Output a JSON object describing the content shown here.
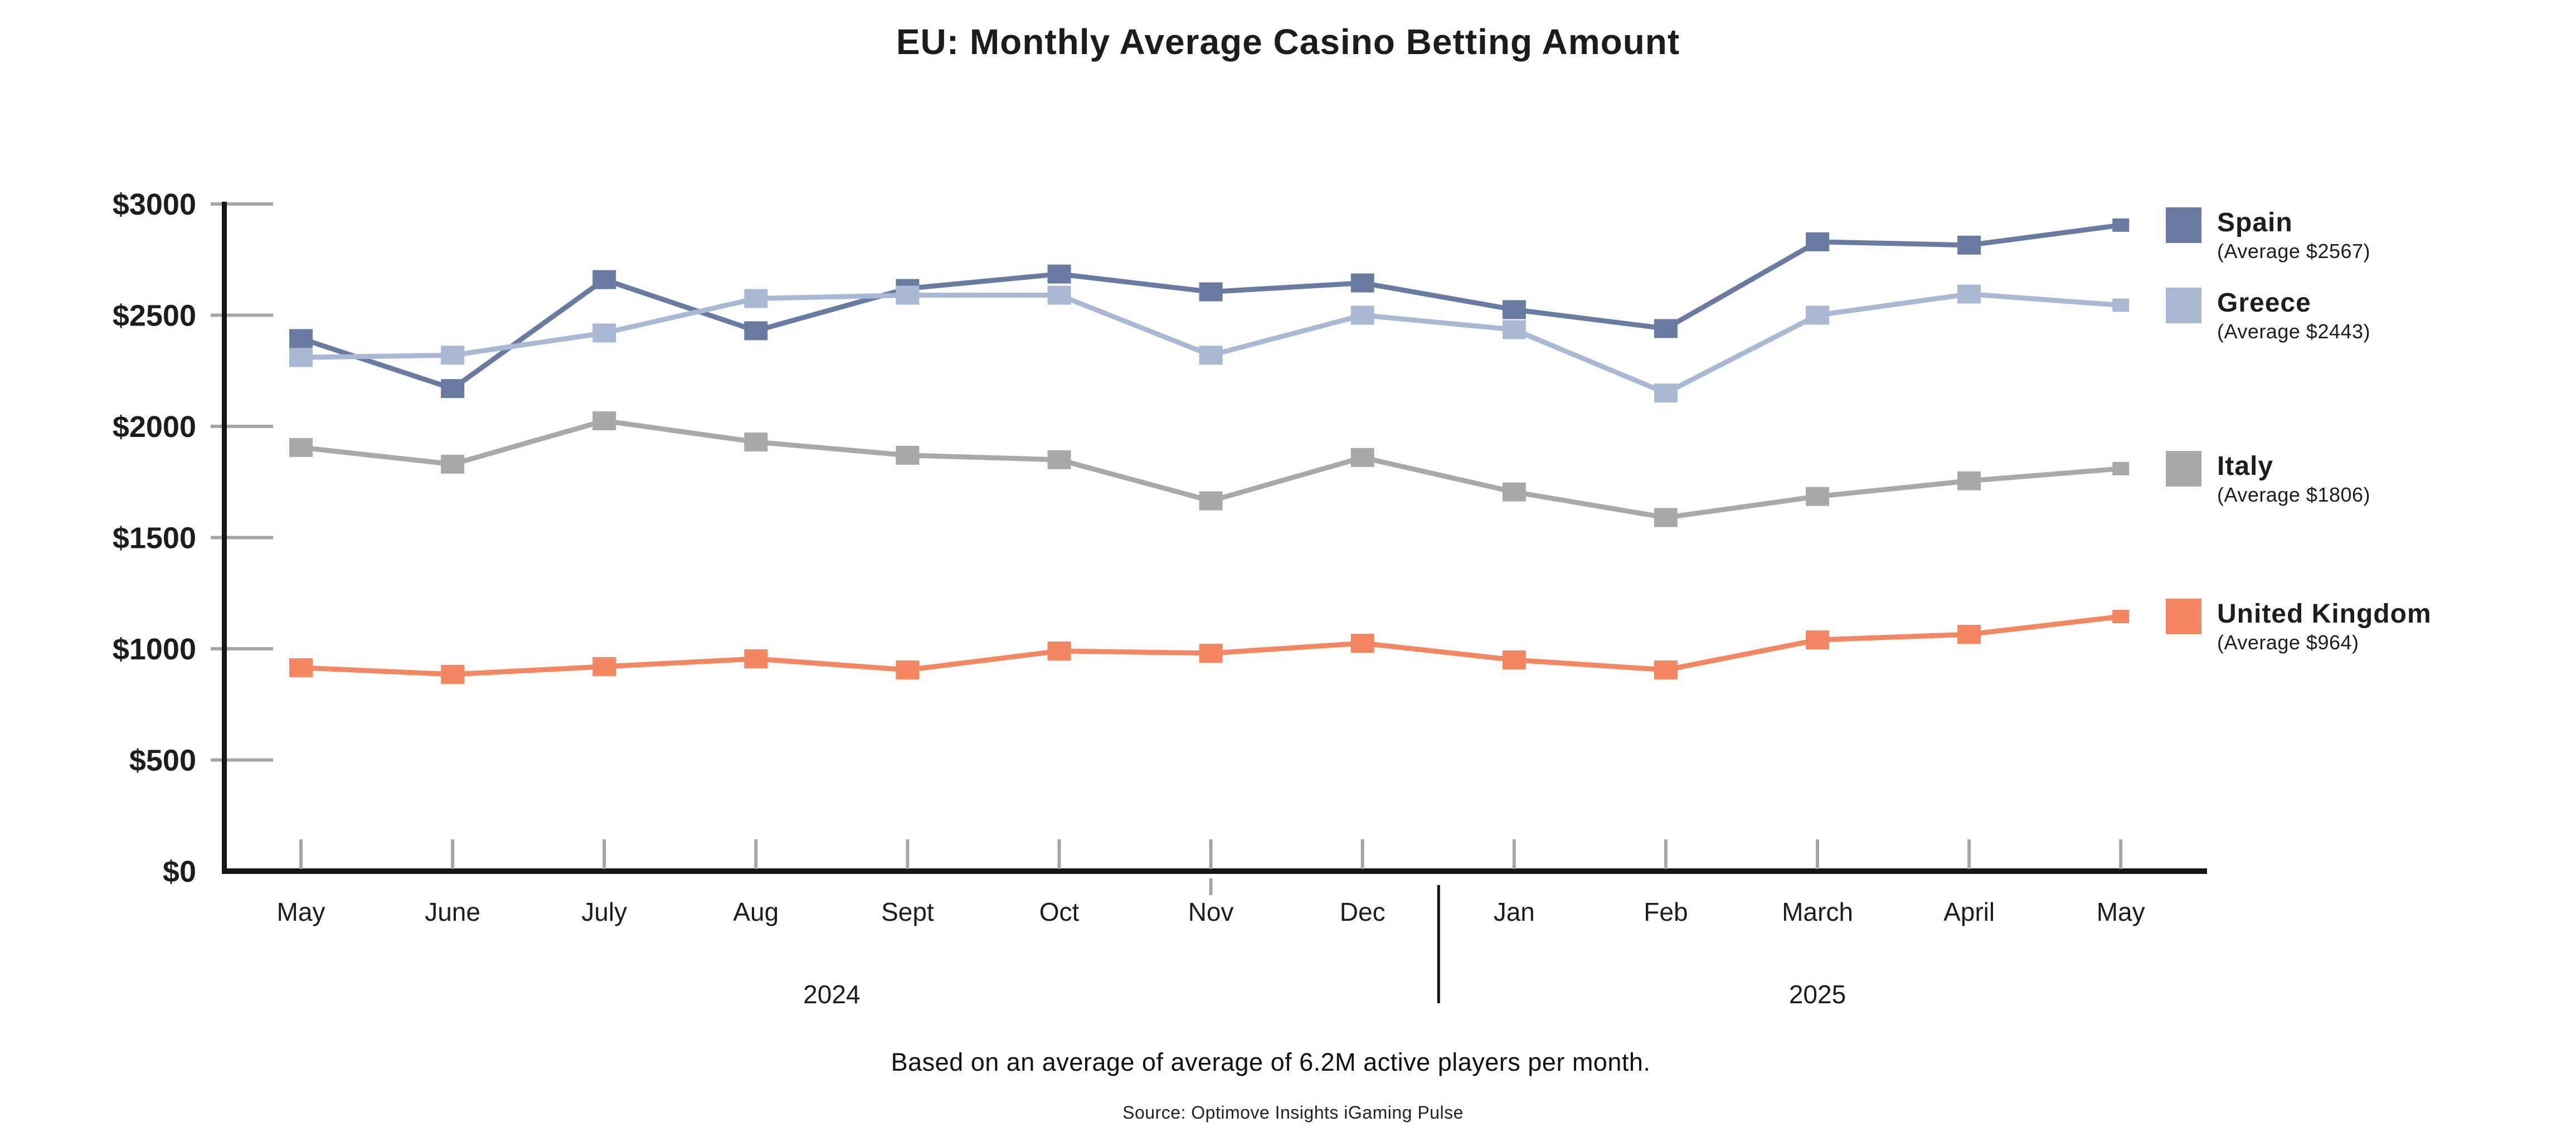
{
  "title": "EU: Monthly Average Casino Betting Amount",
  "footer": {
    "note": "Based on an average of average of 6.2M active players per month.",
    "source": "Source: Optimove Insights iGaming Pulse"
  },
  "legend": [
    {
      "label": "Spain",
      "average_label": "(Average $2567)",
      "color": "#6a7ba2"
    },
    {
      "label": "Greece",
      "average_label": "(Average $2443)",
      "color": "#aab9d3"
    },
    {
      "label": "Italy",
      "average_label": "(Average $1806)",
      "color": "#a9a9ab"
    },
    {
      "label": "United Kingdom",
      "average_label": "(Average $964)",
      "color": "#f48661"
    }
  ],
  "chart_data": {
    "type": "line",
    "x": [
      "May",
      "June",
      "July",
      "Aug",
      "Sept",
      "Oct",
      "Nov",
      "Dec",
      "Jan",
      "Feb",
      "March",
      "April",
      "May"
    ],
    "year_groups": [
      {
        "label": "2024",
        "start": 0,
        "end": 7
      },
      {
        "label": "2025",
        "start": 8,
        "end": 12
      }
    ],
    "y_ticks": [
      "$3000",
      "$2500",
      "$2000",
      "$1500",
      "$1000",
      "$500",
      "$0"
    ],
    "ylim": [
      0,
      3000
    ],
    "grid": false,
    "legend_position": "right",
    "series": [
      {
        "name": "Spain",
        "color": "#6a7ba2",
        "average": 2567,
        "values": [
          2395,
          2170,
          2660,
          2430,
          2620,
          2685,
          2605,
          2645,
          2525,
          2440,
          2830,
          2815,
          2905
        ]
      },
      {
        "name": "Greece",
        "color": "#aab9d3",
        "average": 2443,
        "values": [
          2310,
          2320,
          2420,
          2575,
          2590,
          2590,
          2320,
          2500,
          2435,
          2150,
          2500,
          2595,
          2545
        ]
      },
      {
        "name": "Italy",
        "color": "#a9a9ab",
        "average": 1806,
        "values": [
          1905,
          1830,
          2025,
          1930,
          1870,
          1850,
          1665,
          1860,
          1705,
          1590,
          1685,
          1755,
          1810
        ]
      },
      {
        "name": "United Kingdom",
        "color": "#f48661",
        "average": 964,
        "values": [
          915,
          885,
          920,
          955,
          905,
          990,
          980,
          1025,
          950,
          905,
          1040,
          1065,
          1145
        ]
      }
    ]
  }
}
